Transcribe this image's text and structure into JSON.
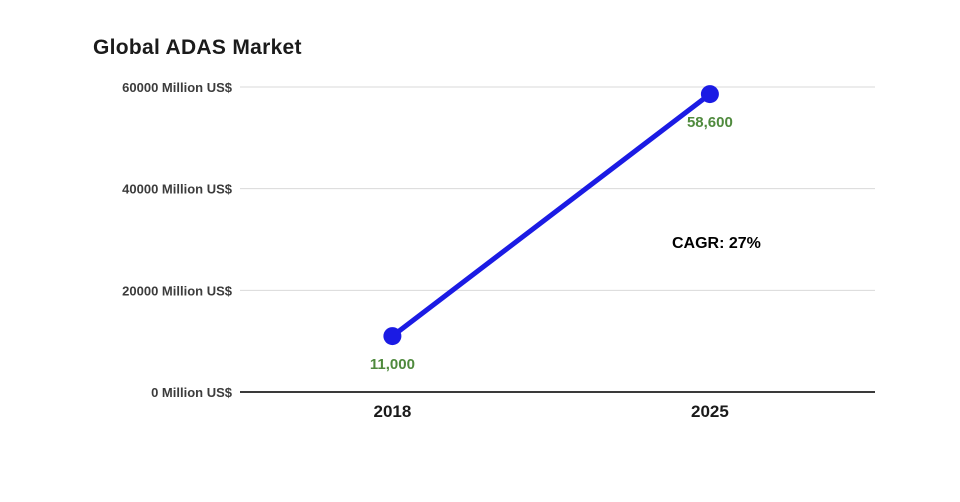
{
  "chart_data": {
    "type": "line",
    "title": "Global ADAS Market",
    "x": [
      2018,
      2025
    ],
    "values": [
      11000,
      58600
    ],
    "point_labels": [
      "11,000",
      "58,600"
    ],
    "y_ticks": [
      0,
      20000,
      40000,
      60000
    ],
    "y_tick_labels": [
      "0 Million US$",
      "20000 Million US$",
      "40000 Million US$",
      "60000 Million US$"
    ],
    "ylim": [
      0,
      60000
    ],
    "annotation": "CAGR: 27%",
    "grid": true,
    "legend": "none",
    "line_color": "#1b1be4",
    "marker_color": "#1b1be4",
    "label_color": "#4f8a3d",
    "zero_axis_color": "#3a3a3a",
    "gridline_color": "#d9d9d9"
  }
}
